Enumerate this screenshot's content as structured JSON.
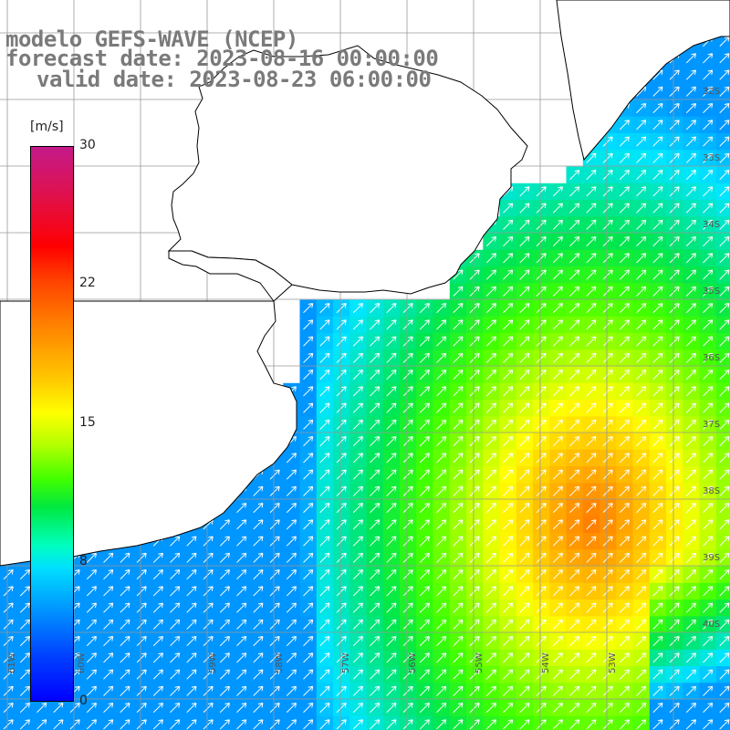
{
  "title": {
    "line1": "modelo GEFS-WAVE (NCEP)",
    "line2": "forecast date: 2023-08-16 00:00:00",
    "line3": "valid date: 2023-08-23 06:00:00"
  },
  "colorbar": {
    "unit": "[m/s]",
    "labels": [
      "30",
      "22",
      "15",
      "8",
      "0"
    ],
    "label_values": [
      30,
      22,
      15,
      8,
      0
    ],
    "min": 0,
    "max": 30
  },
  "axes": {
    "lat_labels": [
      "32S",
      "33S",
      "34S",
      "35S",
      "36S",
      "37S",
      "38S",
      "39S",
      "40S"
    ],
    "lon_labels": [
      "61W",
      "60W",
      "59W",
      "58W",
      "57W",
      "56W",
      "55W",
      "54W",
      "53W"
    ]
  },
  "field": {
    "variable": "wind speed",
    "arrow_direction": "toward northeast"
  },
  "colors": {
    "land": "#ffffff",
    "grid": "#999999",
    "coast": "#000000",
    "arrows": "#ffffff",
    "title": "#7a7a7a"
  }
}
